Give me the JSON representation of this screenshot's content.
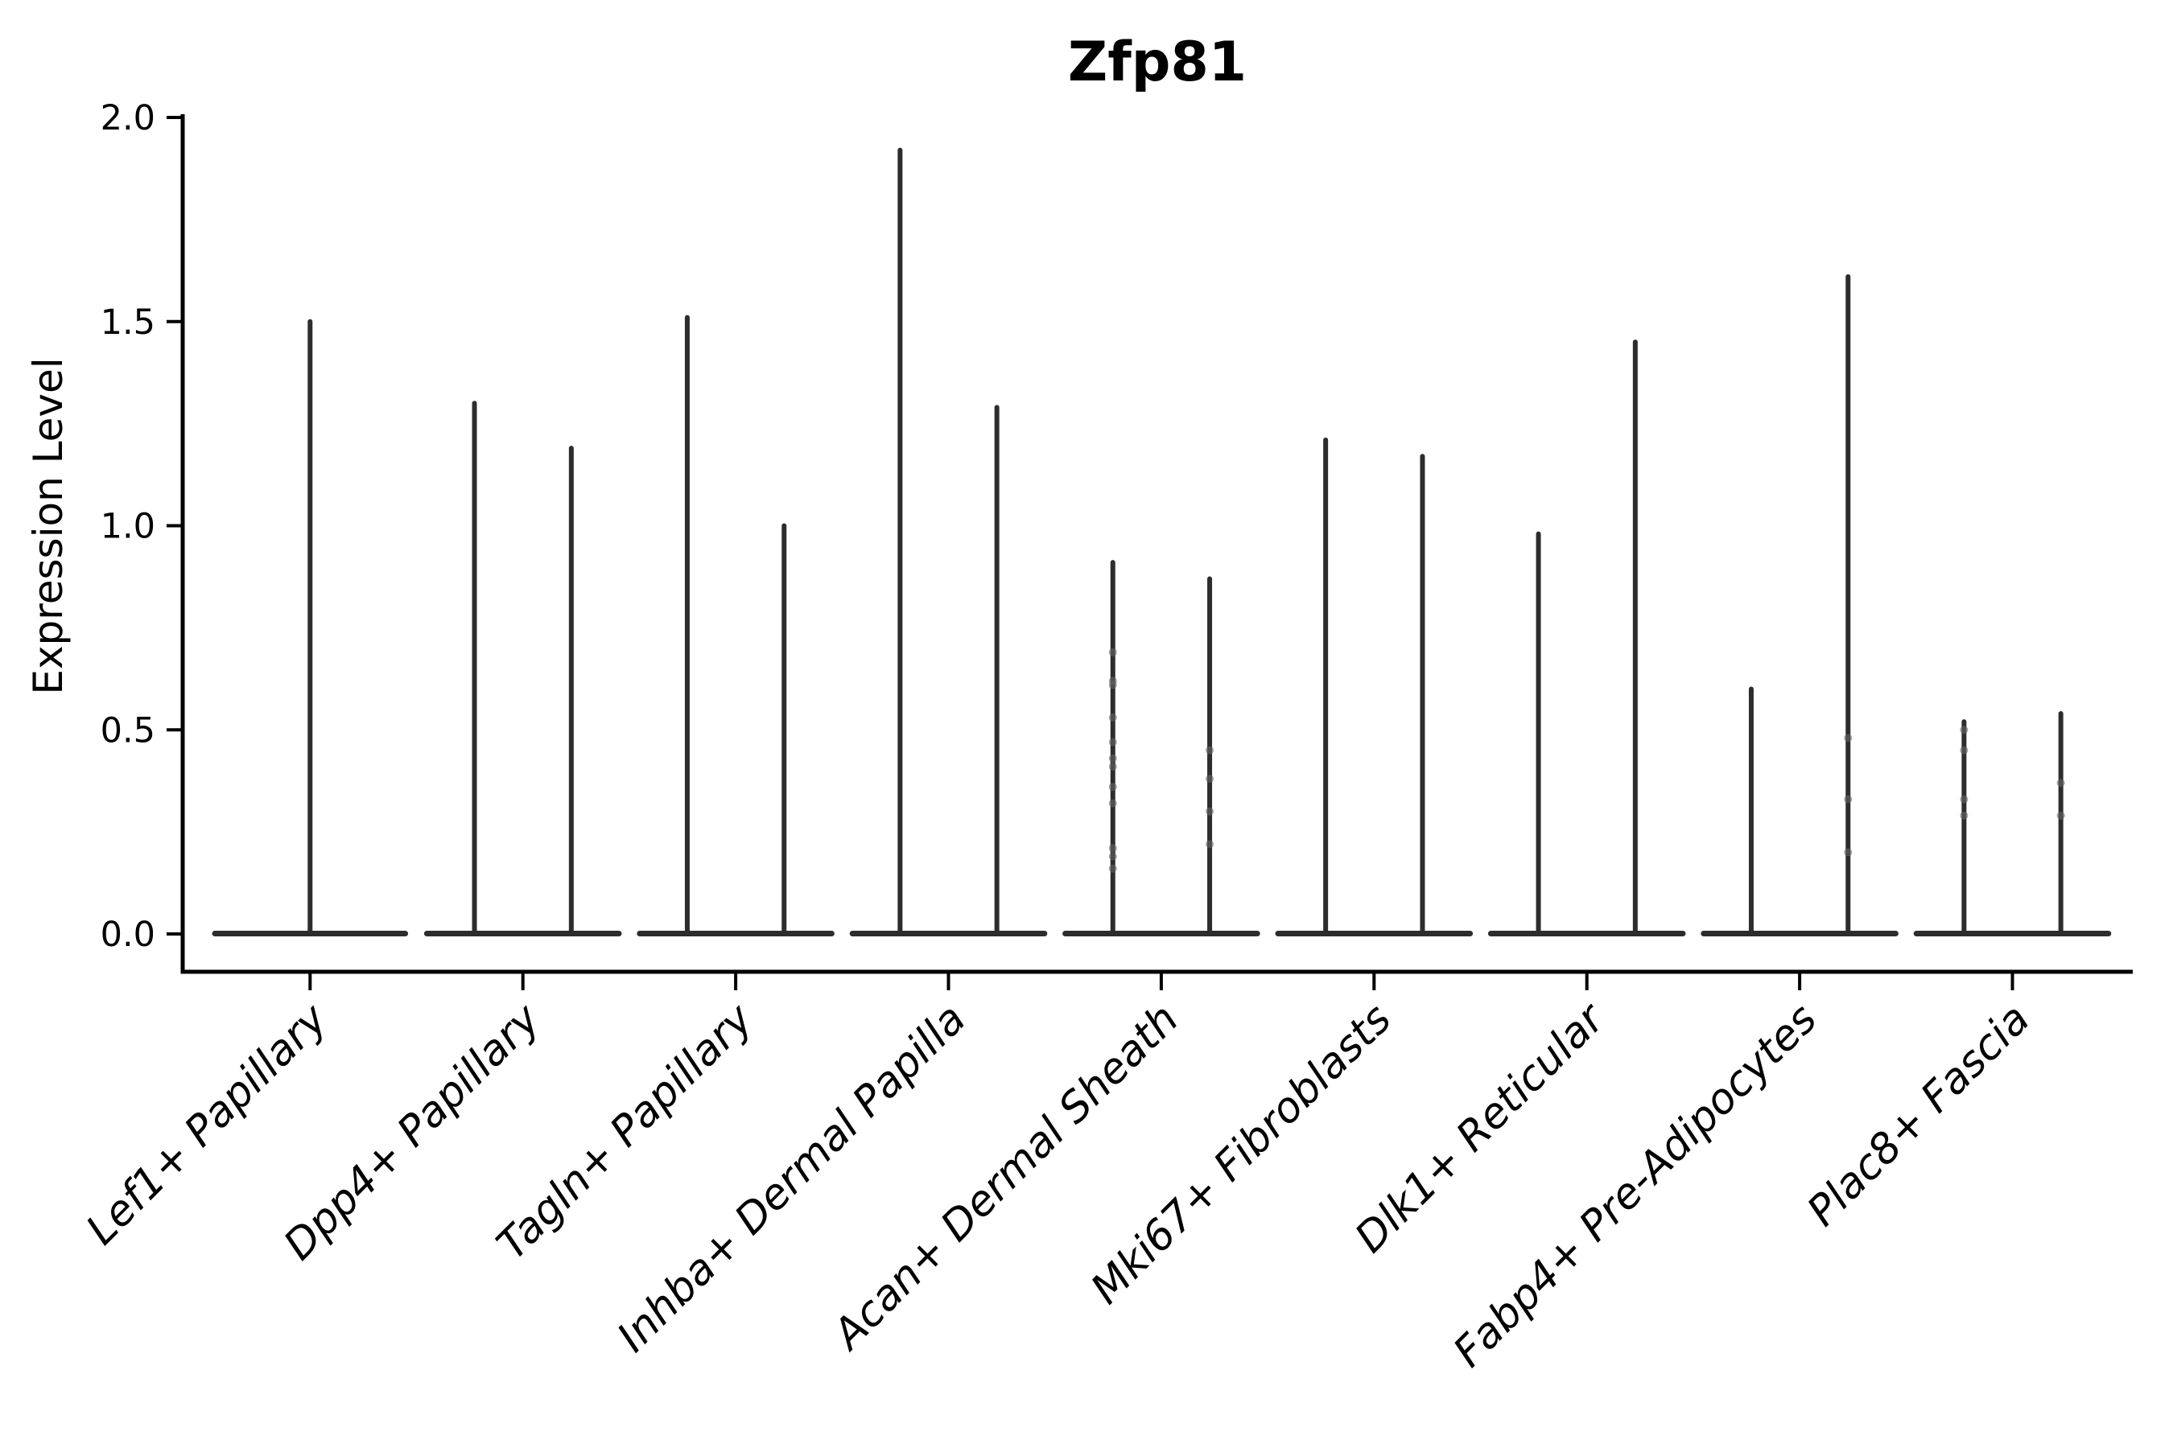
{
  "chart_data": {
    "type": "violin",
    "title": "Zfp81",
    "ylabel": "Expression Level",
    "xlabel": "",
    "ylim": [
      0,
      2.0
    ],
    "yticks": [
      2.0,
      1.5,
      1.0,
      0.5,
      0.0
    ],
    "ytick_labels": [
      "2.0",
      "1.5",
      "1.0",
      "0.5",
      "0.0"
    ],
    "grid": false,
    "legend": "none",
    "categories": [
      "Lef1+ Papillary",
      "Dpp4+ Papillary",
      "Tagln+ Papillary",
      "Inhba+ Dermal Papilla",
      "Acan+ Dermal Sheath",
      "Mki67+ Fibroblasts",
      "Dlk1+ Reticular",
      "Fabp4+ Pre-Adipocytes",
      "Plac8+ Fascia"
    ],
    "violins_per_category": [
      {
        "category": "Lef1+ Papillary",
        "violins": [
          {
            "max": 1.5,
            "points": []
          }
        ]
      },
      {
        "category": "Dpp4+ Papillary",
        "violins": [
          {
            "max": 1.3,
            "points": []
          },
          {
            "max": 1.19,
            "points": []
          }
        ]
      },
      {
        "category": "Tagln+ Papillary",
        "violins": [
          {
            "max": 1.51,
            "points": []
          },
          {
            "max": 1.0,
            "points": []
          }
        ]
      },
      {
        "category": "Inhba+ Dermal Papilla",
        "violins": [
          {
            "max": 1.92,
            "points": []
          },
          {
            "max": 1.29,
            "points": []
          }
        ]
      },
      {
        "category": "Acan+ Dermal Sheath",
        "violins": [
          {
            "max": 0.91,
            "points": [
              0.69,
              0.62,
              0.61,
              0.53,
              0.47,
              0.43,
              0.41,
              0.36,
              0.32,
              0.21,
              0.19,
              0.16
            ]
          },
          {
            "max": 0.87,
            "points": [
              0.45,
              0.38,
              0.3,
              0.22
            ]
          }
        ]
      },
      {
        "category": "Mki67+ Fibroblasts",
        "violins": [
          {
            "max": 1.21,
            "points": []
          },
          {
            "max": 1.17,
            "points": []
          }
        ]
      },
      {
        "category": "Dlk1+ Reticular",
        "violins": [
          {
            "max": 0.98,
            "points": []
          },
          {
            "max": 1.45,
            "points": []
          }
        ]
      },
      {
        "category": "Fabp4+ Pre-Adipocytes",
        "violins": [
          {
            "max": 0.6,
            "points": []
          },
          {
            "max": 1.61,
            "points": [
              0.48,
              0.33,
              0.2
            ]
          }
        ]
      },
      {
        "category": "Plac8+ Fascia",
        "violins": [
          {
            "max": 0.52,
            "points": [
              0.5,
              0.45,
              0.33,
              0.29
            ]
          },
          {
            "max": 0.54,
            "points": [
              0.37,
              0.29
            ]
          }
        ]
      }
    ],
    "colors": {
      "violin_stroke": "#2d2d2d",
      "axis": "#000000",
      "text": "#000000",
      "point": "#666666",
      "background": "#ffffff"
    }
  }
}
